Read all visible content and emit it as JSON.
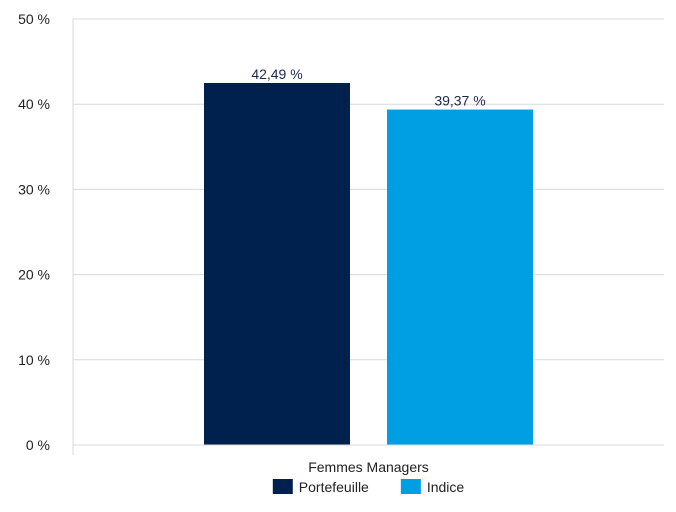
{
  "chart_data": {
    "type": "bar",
    "categories": [
      "Femmes Managers"
    ],
    "series": [
      {
        "name": "Portefeuille",
        "values": [
          42.49
        ],
        "label": "42,49 %",
        "color": "#00204e"
      },
      {
        "name": "Indice",
        "values": [
          39.37
        ],
        "label": "39,37 %",
        "color": "#009fe3"
      }
    ],
    "ylim": [
      0,
      50
    ],
    "yticks": [
      0,
      10,
      20,
      30,
      40,
      50
    ],
    "ytick_labels": [
      "0 %",
      "10 %",
      "20 %",
      "30 %",
      "40 %",
      "50 %"
    ],
    "grid": true,
    "legend_position": "bottom-center",
    "title": "",
    "xlabel": "",
    "ylabel": ""
  }
}
